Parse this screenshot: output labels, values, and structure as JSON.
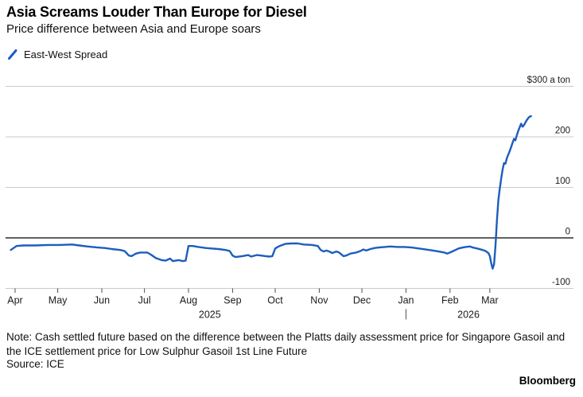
{
  "header": {
    "title": "Asia Screams Louder Than Europe for Diesel",
    "subtitle": "Price difference between Asia and Europe soars"
  },
  "legend": {
    "label": "East-West Spread"
  },
  "chart_data": {
    "type": "line",
    "title": "Asia Screams Louder Than Europe for Diesel",
    "subtitle": "Price difference between Asia and Europe soars",
    "xlabel": "",
    "ylabel": "$ a ton",
    "ylim": [
      -100,
      300
    ],
    "grid": "horizontal",
    "legend_position": "top-left",
    "colors": {
      "line": "#1d5dbe",
      "gridline": "#c9c9c9",
      "zero_line": "#000000",
      "tick": "#4d4d4d",
      "text": "#1a1a1a"
    },
    "y_ticks": [
      {
        "value": 300,
        "label": "$300 a ton"
      },
      {
        "value": 200,
        "label": "200"
      },
      {
        "value": 100,
        "label": "100"
      },
      {
        "value": 0,
        "label": "0"
      },
      {
        "value": -100,
        "label": "-100"
      }
    ],
    "x_unit": "days since 2025-04-01",
    "x_ticks": [
      {
        "label": "Apr",
        "day": 0
      },
      {
        "label": "May",
        "day": 30
      },
      {
        "label": "Jun",
        "day": 61
      },
      {
        "label": "Jul",
        "day": 91
      },
      {
        "label": "Aug",
        "day": 122
      },
      {
        "label": "Sep",
        "day": 153
      },
      {
        "label": "Oct",
        "day": 183
      },
      {
        "label": "Nov",
        "day": 214
      },
      {
        "label": "Dec",
        "day": 244
      },
      {
        "label": "Jan",
        "day": 275
      },
      {
        "label": "Feb",
        "day": 306
      },
      {
        "label": "Mar",
        "day": 334
      }
    ],
    "year_labels": [
      {
        "label": "2025",
        "center_day": 137
      },
      {
        "label": "2026",
        "center_day": 319
      }
    ],
    "year_separator_day": 275,
    "series": [
      {
        "name": "East-West Spread",
        "color": "#1d5dbe",
        "points": [
          [
            -3,
            -24
          ],
          [
            1,
            -16
          ],
          [
            6,
            -15
          ],
          [
            14,
            -15
          ],
          [
            23,
            -14
          ],
          [
            31,
            -14
          ],
          [
            40,
            -13
          ],
          [
            45,
            -15
          ],
          [
            51,
            -17
          ],
          [
            58,
            -19
          ],
          [
            63,
            -20
          ],
          [
            68,
            -22
          ],
          [
            74,
            -24
          ],
          [
            77,
            -26
          ],
          [
            80,
            -35
          ],
          [
            82,
            -36
          ],
          [
            85,
            -31
          ],
          [
            88,
            -29
          ],
          [
            93,
            -29
          ],
          [
            96,
            -34
          ],
          [
            99,
            -40
          ],
          [
            103,
            -44
          ],
          [
            106,
            -45
          ],
          [
            109,
            -41
          ],
          [
            111,
            -46
          ],
          [
            115,
            -44
          ],
          [
            118,
            -46
          ],
          [
            120,
            -45
          ],
          [
            122,
            -16
          ],
          [
            125,
            -16
          ],
          [
            129,
            -18
          ],
          [
            134,
            -20
          ],
          [
            138,
            -21
          ],
          [
            143,
            -22
          ],
          [
            148,
            -24
          ],
          [
            151,
            -26
          ],
          [
            153,
            -35
          ],
          [
            155,
            -38
          ],
          [
            160,
            -36
          ],
          [
            164,
            -34
          ],
          [
            166,
            -37
          ],
          [
            170,
            -34
          ],
          [
            173,
            -35
          ],
          [
            176,
            -36
          ],
          [
            179,
            -37
          ],
          [
            181,
            -36
          ],
          [
            183,
            -21
          ],
          [
            186,
            -16
          ],
          [
            190,
            -12
          ],
          [
            194,
            -11
          ],
          [
            199,
            -11
          ],
          [
            203,
            -13
          ],
          [
            209,
            -14
          ],
          [
            213,
            -16
          ],
          [
            215,
            -24
          ],
          [
            217,
            -27
          ],
          [
            219,
            -25
          ],
          [
            221,
            -27
          ],
          [
            223,
            -30
          ],
          [
            226,
            -27
          ],
          [
            228,
            -29
          ],
          [
            231,
            -36
          ],
          [
            233,
            -35
          ],
          [
            236,
            -31
          ],
          [
            240,
            -29
          ],
          [
            243,
            -26
          ],
          [
            245,
            -23
          ],
          [
            247,
            -25
          ],
          [
            250,
            -22
          ],
          [
            253,
            -20
          ],
          [
            256,
            -19
          ],
          [
            260,
            -18
          ],
          [
            264,
            -17
          ],
          [
            269,
            -18
          ],
          [
            274,
            -18
          ],
          [
            279,
            -19
          ],
          [
            284,
            -21
          ],
          [
            289,
            -23
          ],
          [
            294,
            -25
          ],
          [
            298,
            -27
          ],
          [
            302,
            -29
          ],
          [
            304,
            -31
          ],
          [
            306,
            -29
          ],
          [
            309,
            -25
          ],
          [
            312,
            -21
          ],
          [
            315,
            -19
          ],
          [
            317,
            -18
          ],
          [
            320,
            -17
          ],
          [
            322,
            -19
          ],
          [
            325,
            -21
          ],
          [
            329,
            -24
          ],
          [
            331,
            -26
          ],
          [
            333,
            -30
          ],
          [
            334,
            -36
          ],
          [
            335,
            -50
          ],
          [
            336,
            -61
          ],
          [
            337,
            -52
          ],
          [
            338,
            -15
          ],
          [
            339,
            35
          ],
          [
            340,
            75
          ],
          [
            341,
            98
          ],
          [
            342,
            118
          ],
          [
            343,
            135
          ],
          [
            344,
            148
          ],
          [
            345,
            147
          ],
          [
            346,
            158
          ],
          [
            347,
            165
          ],
          [
            348,
            172
          ],
          [
            349,
            180
          ],
          [
            350,
            188
          ],
          [
            351,
            196
          ],
          [
            352,
            193
          ],
          [
            353,
            203
          ],
          [
            354,
            212
          ],
          [
            355,
            219
          ],
          [
            356,
            226
          ],
          [
            357,
            220
          ],
          [
            358,
            223
          ],
          [
            359,
            228
          ],
          [
            360,
            233
          ],
          [
            361,
            237
          ],
          [
            362,
            240
          ],
          [
            363,
            241
          ]
        ]
      }
    ]
  },
  "footer": {
    "note": "Note: Cash settled future based on the difference between the Platts daily assessment price for Singapore Gasoil and the ICE settlement price for Low Sulphur Gasoil 1st Line Future",
    "source": "Source: ICE",
    "brand": "Bloomberg"
  }
}
